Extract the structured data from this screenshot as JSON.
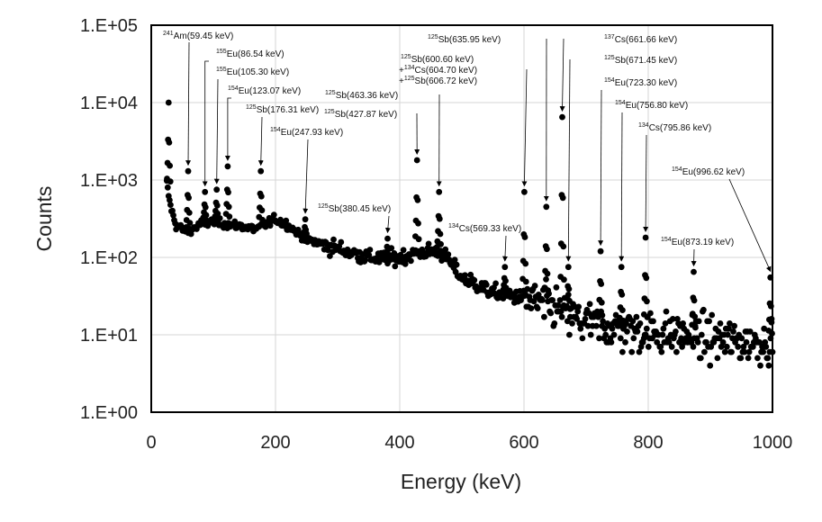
{
  "chart_data": {
    "type": "scatter",
    "title": "",
    "xlabel": "Energy (keV)",
    "ylabel": "Counts",
    "xlim": [
      0,
      1000
    ],
    "ylim": [
      1,
      100000
    ],
    "yscale": "log",
    "grid": true,
    "x_ticks": [
      "0",
      "200",
      "400",
      "600",
      "800",
      "1000"
    ],
    "y_ticks": [
      "1.E+00",
      "1.E+01",
      "1.E+02",
      "1.E+03",
      "1.E+04",
      "1.E+05"
    ],
    "continuum": {
      "x": [
        25,
        30,
        35,
        40,
        50,
        60,
        70,
        80,
        100,
        120,
        150,
        170,
        185,
        200,
        220,
        250,
        300,
        350,
        380,
        400,
        430,
        460,
        470,
        500,
        550,
        600,
        650,
        700,
        750,
        800,
        850,
        900,
        950,
        1000
      ],
      "y": [
        900,
        500,
        350,
        260,
        230,
        220,
        240,
        270,
        290,
        270,
        250,
        230,
        270,
        310,
        260,
        170,
        130,
        100,
        95,
        100,
        115,
        120,
        110,
        55,
        35,
        30,
        22,
        14,
        12,
        11,
        10,
        9,
        8,
        8
      ]
    },
    "peaks": [
      {
        "x": 28,
        "y": 10000
      },
      {
        "x": 59.45,
        "y": 1300
      },
      {
        "x": 86.54,
        "y": 700
      },
      {
        "x": 105.3,
        "y": 750
      },
      {
        "x": 123.07,
        "y": 1500
      },
      {
        "x": 176.31,
        "y": 1300
      },
      {
        "x": 247.93,
        "y": 310
      },
      {
        "x": 380.45,
        "y": 175
      },
      {
        "x": 427.87,
        "y": 1800
      },
      {
        "x": 463.36,
        "y": 700
      },
      {
        "x": 569.33,
        "y": 75
      },
      {
        "x": 600.6,
        "y": 700
      },
      {
        "x": 635.95,
        "y": 450
      },
      {
        "x": 661.66,
        "y": 6500
      },
      {
        "x": 671.45,
        "y": 75
      },
      {
        "x": 723.3,
        "y": 120
      },
      {
        "x": 756.8,
        "y": 75
      },
      {
        "x": 795.86,
        "y": 180
      },
      {
        "x": 873.19,
        "y": 65
      },
      {
        "x": 996.62,
        "y": 55
      }
    ],
    "annotations": [
      {
        "iso": "241",
        "el": "Am",
        "energy": "(59.45 keV)"
      },
      {
        "iso": "155",
        "el": "Eu",
        "energy": "(86.54 keV)"
      },
      {
        "iso": "155",
        "el": "Eu",
        "energy": "(105.30 keV)"
      },
      {
        "iso": "154",
        "el": "Eu",
        "energy": "(123.07 keV)"
      },
      {
        "iso": "125",
        "el": "Sb",
        "energy": "(176.31 keV)"
      },
      {
        "iso": "154",
        "el": "Eu",
        "energy": "(247.93 keV)"
      },
      {
        "iso": "125",
        "el": "Sb",
        "energy": "(380.45 keV)"
      },
      {
        "iso": "125",
        "el": "Sb",
        "energy": "(427.87 keV)"
      },
      {
        "iso": "125",
        "el": "Sb",
        "energy": "(463.36 keV)"
      },
      {
        "iso": "134",
        "el": "Cs",
        "energy": "(569.33 keV)"
      },
      {
        "iso": "125",
        "el": "Sb",
        "energy": "(600.60 keV)"
      },
      {
        "prefix": "+",
        "iso": "134",
        "el": "Cs",
        "energy": "(604.70 keV)"
      },
      {
        "prefix": "+",
        "iso": "125",
        "el": "Sb",
        "energy": "(606.72 keV)"
      },
      {
        "iso": "125",
        "el": "Sb",
        "energy": "(635.95 keV)"
      },
      {
        "iso": "137",
        "el": "Cs",
        "energy": "(661.66 keV)"
      },
      {
        "iso": "125",
        "el": "Sb",
        "energy": "(671.45 keV)"
      },
      {
        "iso": "154",
        "el": "Eu",
        "energy": "(723.30 keV)"
      },
      {
        "iso": "154",
        "el": "Eu",
        "energy": "(756.80 keV)"
      },
      {
        "iso": "134",
        "el": "Cs",
        "energy": "(795.86 keV)"
      },
      {
        "iso": "154",
        "el": "Eu",
        "energy": "(873.19 keV)"
      },
      {
        "iso": "154",
        "el": "Eu",
        "energy": "(996.62 keV)"
      }
    ]
  }
}
